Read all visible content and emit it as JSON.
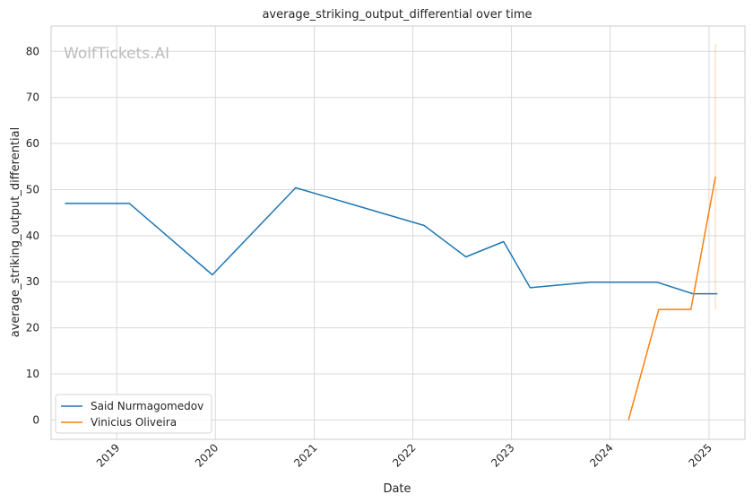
{
  "chart_data": {
    "type": "line",
    "title": "average_striking_output_differential over time",
    "xlabel": "Date",
    "ylabel": "average_striking_output_differential",
    "watermark": "WolfTickets.AI",
    "x_ticks": [
      "2019",
      "2020",
      "2021",
      "2022",
      "2023",
      "2024",
      "2025"
    ],
    "y_ticks": [
      0,
      10,
      20,
      30,
      40,
      50,
      60,
      70,
      80
    ],
    "xlim": [
      "2018-05-03",
      "2025-05-14"
    ],
    "ylim": [
      -4.2,
      85.5
    ],
    "grid": true,
    "legend_position": "lower-left",
    "series": [
      {
        "name": "Said Nurmagomedov",
        "color": "#1f77b4",
        "points": [
          {
            "x": "2018-06-23",
            "y": 47.0
          },
          {
            "x": "2019-02-17",
            "y": 47.0
          },
          {
            "x": "2019-12-21",
            "y": 31.5
          },
          {
            "x": "2020-10-24",
            "y": 50.4
          },
          {
            "x": "2022-02-12",
            "y": 42.2
          },
          {
            "x": "2022-07-16",
            "y": 35.4
          },
          {
            "x": "2022-12-03",
            "y": 38.7
          },
          {
            "x": "2023-03-11",
            "y": 28.7
          },
          {
            "x": "2023-10-21",
            "y": 29.9
          },
          {
            "x": "2024-06-22",
            "y": 29.9
          },
          {
            "x": "2024-11-02",
            "y": 27.4
          },
          {
            "x": "2025-02-01",
            "y": 27.4
          }
        ]
      },
      {
        "name": "Vinicius Oliveira",
        "color": "#ff7f0e",
        "points": [
          {
            "x": "2024-03-09",
            "y": 0.0
          },
          {
            "x": "2024-06-29",
            "y": 24.0
          },
          {
            "x": "2024-10-26",
            "y": 24.0
          },
          {
            "x": "2025-01-25",
            "y": 52.8
          }
        ],
        "error_band": {
          "x": "2025-01-25",
          "low": 24.0,
          "high": 81.6
        }
      }
    ]
  }
}
